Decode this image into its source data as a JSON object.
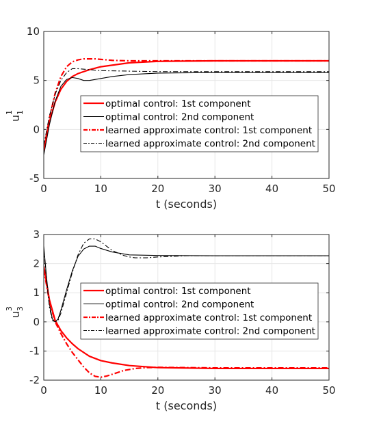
{
  "chart_data": [
    {
      "type": "line",
      "ylabel": {
        "base": "u",
        "sub": "1",
        "sup": "1"
      },
      "xlabel": "t (seconds)",
      "xlim": [
        0,
        50
      ],
      "ylim": [
        -5,
        10
      ],
      "xticks": [
        "0",
        "10",
        "20",
        "30",
        "40",
        "50"
      ],
      "yticks": [
        "-5",
        "0",
        "5",
        "10"
      ],
      "grid": true,
      "legend_position": "center",
      "series": [
        {
          "name": "optimal control: 1st component",
          "color": "#ff0000",
          "style": "solid",
          "x": [
            0,
            1,
            2,
            3,
            4,
            5,
            6,
            8,
            10,
            15,
            20,
            30,
            40,
            50
          ],
          "y": [
            -2.2,
            0.8,
            2.8,
            4.1,
            4.9,
            5.4,
            5.7,
            6.1,
            6.4,
            6.8,
            6.95,
            7.0,
            7.0,
            7.0
          ]
        },
        {
          "name": "optimal control: 2nd component",
          "color": "#000000",
          "style": "solid",
          "x": [
            0,
            1,
            2,
            3,
            4,
            5,
            6,
            7,
            8,
            10,
            12,
            15,
            20,
            30,
            40,
            50
          ],
          "y": [
            -2.6,
            0.5,
            2.9,
            4.4,
            5.1,
            5.3,
            5.2,
            5.0,
            5.0,
            5.2,
            5.4,
            5.6,
            5.75,
            5.8,
            5.8,
            5.8
          ]
        },
        {
          "name": "learned approximate control: 1st component",
          "color": "#ff0000",
          "style": "dashdot",
          "x": [
            0,
            1,
            2,
            3,
            4,
            5,
            6,
            7,
            8,
            9,
            10,
            12,
            15,
            20,
            30,
            40,
            50
          ],
          "y": [
            -2.1,
            1.2,
            3.7,
            5.4,
            6.4,
            6.9,
            7.1,
            7.2,
            7.2,
            7.2,
            7.15,
            7.05,
            7.0,
            7.0,
            7.0,
            7.0,
            7.0
          ]
        },
        {
          "name": "learned approximate control: 2nd component",
          "color": "#000000",
          "style": "dashdot",
          "x": [
            0,
            1,
            2,
            3,
            4,
            5,
            6,
            8,
            10,
            15,
            20,
            30,
            40,
            50
          ],
          "y": [
            -1.6,
            1.4,
            3.6,
            5.0,
            5.8,
            6.2,
            6.2,
            6.1,
            6.0,
            5.95,
            5.9,
            5.9,
            5.9,
            5.9
          ]
        }
      ]
    },
    {
      "type": "line",
      "ylabel": {
        "base": "u",
        "sub": "3",
        "sup": "3"
      },
      "xlabel": "t (seconds)",
      "xlim": [
        0,
        50
      ],
      "ylim": [
        -2,
        3
      ],
      "xticks": [
        "0",
        "10",
        "20",
        "30",
        "40",
        "50"
      ],
      "yticks": [
        "-2",
        "-1",
        "0",
        "1",
        "2",
        "3"
      ],
      "grid": true,
      "legend_position": "center",
      "series": [
        {
          "name": "optimal control: 1st component",
          "color": "#ff0000",
          "style": "solid",
          "x": [
            0,
            1,
            2,
            3,
            4,
            5,
            6,
            8,
            10,
            12,
            15,
            20,
            30,
            40,
            50
          ],
          "y": [
            1.9,
            0.75,
            0.05,
            -0.3,
            -0.55,
            -0.75,
            -0.92,
            -1.18,
            -1.33,
            -1.41,
            -1.5,
            -1.57,
            -1.6,
            -1.6,
            -1.6
          ]
        },
        {
          "name": "optimal control: 2nd component",
          "color": "#000000",
          "style": "solid",
          "x": [
            0,
            0.5,
            1,
            1.5,
            2,
            2.5,
            3,
            4,
            5,
            6,
            7,
            8,
            9,
            10,
            12,
            15,
            20,
            30,
            40,
            50
          ],
          "y": [
            2.6,
            1.5,
            0.6,
            0.1,
            0.0,
            0.1,
            0.4,
            1.1,
            1.75,
            2.25,
            2.5,
            2.6,
            2.6,
            2.52,
            2.4,
            2.3,
            2.28,
            2.27,
            2.27,
            2.27
          ]
        },
        {
          "name": "learned approximate control: 1st component",
          "color": "#ff0000",
          "style": "dashdot",
          "x": [
            0,
            1,
            2,
            3,
            4,
            5,
            6,
            7,
            8,
            9,
            10,
            11,
            12,
            14,
            16,
            18,
            20,
            25,
            30,
            40,
            50
          ],
          "y": [
            1.8,
            0.7,
            0.0,
            -0.4,
            -0.75,
            -1.05,
            -1.3,
            -1.55,
            -1.75,
            -1.87,
            -1.9,
            -1.86,
            -1.8,
            -1.67,
            -1.6,
            -1.57,
            -1.56,
            -1.57,
            -1.58,
            -1.58,
            -1.58
          ]
        },
        {
          "name": "learned approximate control: 2nd component",
          "color": "#000000",
          "style": "dashdot",
          "x": [
            0,
            0.5,
            1,
            1.5,
            2,
            2.5,
            3,
            4,
            5,
            6,
            7,
            8,
            9,
            10,
            11,
            12,
            14,
            15,
            16,
            18,
            20,
            25,
            30,
            40,
            50
          ],
          "y": [
            2.5,
            1.4,
            0.5,
            0.05,
            0.0,
            0.05,
            0.3,
            1.0,
            1.7,
            2.3,
            2.7,
            2.85,
            2.85,
            2.75,
            2.6,
            2.45,
            2.28,
            2.23,
            2.2,
            2.2,
            2.23,
            2.27,
            2.27,
            2.27,
            2.27
          ]
        }
      ]
    }
  ]
}
